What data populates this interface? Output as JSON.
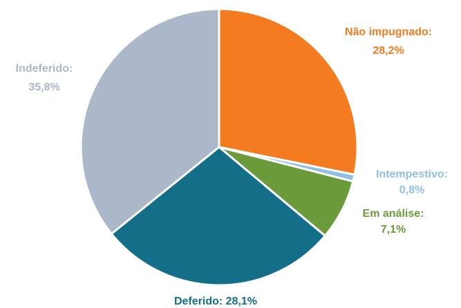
{
  "chart_data": {
    "type": "pie",
    "categories": [
      "Não impugnado:",
      "Intempestivo:",
      "Em análise:",
      "Deferido:",
      "Indeferido:"
    ],
    "values": [
      28.2,
      0.8,
      7.1,
      28.1,
      35.8
    ],
    "value_labels": [
      "28,2%",
      "0,8%",
      "7,1%",
      "28,1%",
      "35,8%"
    ],
    "colors": [
      "#f47b20",
      "#8fc0e3",
      "#6b9a3b",
      "#136e88",
      "#abb8ca"
    ]
  }
}
